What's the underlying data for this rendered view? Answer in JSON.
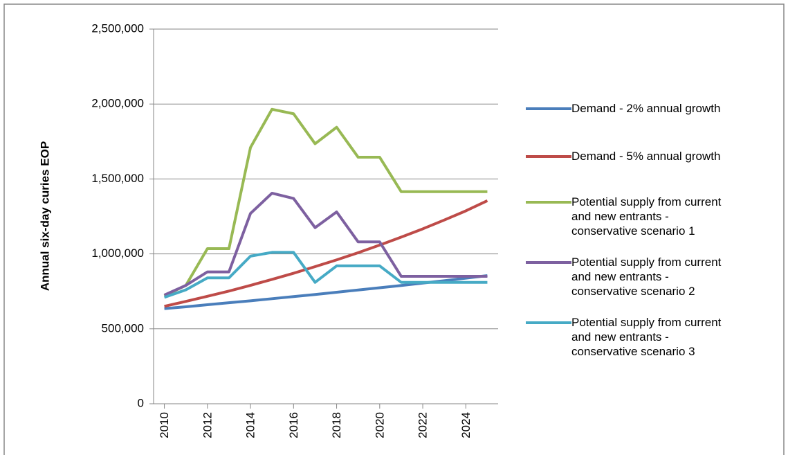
{
  "chart_data": {
    "type": "line",
    "y_label": "Annual six-day curies EOP",
    "x": [
      2010,
      2011,
      2012,
      2013,
      2014,
      2015,
      2016,
      2017,
      2018,
      2019,
      2020,
      2021,
      2022,
      2023,
      2024,
      2025
    ],
    "xlim": [
      2009.5,
      2025.5
    ],
    "xticks": [
      2010,
      2012,
      2014,
      2016,
      2018,
      2020,
      2022,
      2024
    ],
    "ylim": [
      0,
      2500000
    ],
    "yticks": [
      0,
      {
        "value": 500000,
        "label": "500,000"
      },
      {
        "value": 1000000,
        "label": "1,000,000"
      },
      {
        "value": 1500000,
        "label": "1,500,000"
      },
      {
        "value": 2000000,
        "label": "2,000,000"
      },
      {
        "value": 2500000,
        "label": "2,500,000"
      }
    ],
    "grid": true,
    "legend": "right",
    "series": [
      {
        "name": "Demand - 2% annual growth",
        "color": "#4a7ebb",
        "values": [
          635000,
          647000,
          661000,
          674000,
          687000,
          701000,
          715000,
          729000,
          744000,
          759000,
          774000,
          789000,
          805000,
          821000,
          838000,
          855000
        ]
      },
      {
        "name": "Demand - 5% annual growth",
        "color": "#be4b48",
        "values": [
          650000,
          683000,
          717000,
          752000,
          790000,
          830000,
          871000,
          915000,
          960000,
          1008000,
          1059000,
          1112000,
          1167000,
          1226000,
          1287000,
          1355000
        ]
      },
      {
        "name": "Potential supply from current and new entrants - conservative scenario 1",
        "color": "#98b954",
        "values": [
          720000,
          790000,
          1035000,
          1035000,
          1710000,
          1965000,
          1935000,
          1735000,
          1845000,
          1645000,
          1645000,
          1415000,
          1415000,
          1415000,
          1415000,
          1415000
        ]
      },
      {
        "name": "Potential supply from current and new entrants - conservative scenario 2",
        "color": "#7d60a0",
        "values": [
          725000,
          790000,
          880000,
          880000,
          1270000,
          1405000,
          1370000,
          1175000,
          1280000,
          1080000,
          1080000,
          850000,
          850000,
          850000,
          850000,
          850000
        ]
      },
      {
        "name": "Potential supply from current and new entrants - conservative scenario 3",
        "color": "#46aac5",
        "values": [
          710000,
          760000,
          840000,
          840000,
          985000,
          1010000,
          1010000,
          810000,
          920000,
          920000,
          920000,
          810000,
          810000,
          810000,
          810000,
          810000
        ]
      }
    ]
  }
}
